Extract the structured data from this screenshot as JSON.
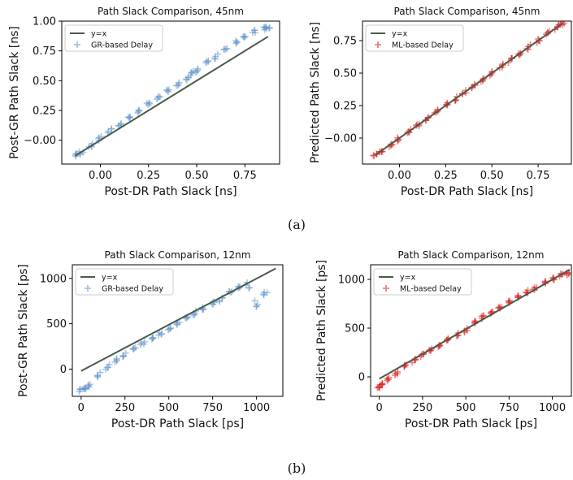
{
  "captions": [
    "(a)",
    "(b)"
  ],
  "chart_data": [
    {
      "type": "scatter",
      "title": "Path Slack Comparison, 45nm",
      "xlabel": "Post-DR Path Slack [ns]",
      "ylabel": "Post-GR Path Slack [ns]",
      "xlim": [
        -0.2,
        0.93
      ],
      "ylim": [
        -0.2,
        1.0
      ],
      "xticks": [
        0.0,
        0.25,
        0.5,
        0.75
      ],
      "xtick_labels": [
        "0.00",
        "0.25",
        "0.50",
        "0.75"
      ],
      "yticks": [
        0.0,
        0.25,
        0.5,
        0.75,
        1.0
      ],
      "ytick_labels": [
        "−0.00",
        "0.25",
        "0.50",
        "0.75",
        "1.00"
      ],
      "legend": "top-left",
      "series": [
        {
          "name": "y=x",
          "kind": "line",
          "color": "#4a5a4a",
          "x": [
            -0.13,
            0.87
          ],
          "y": [
            -0.13,
            0.87
          ]
        },
        {
          "name": "GR-based Delay",
          "kind": "scatter",
          "marker": "+",
          "color": "#5b8fc7",
          "alpha": 0.5,
          "x": [
            -0.13,
            -0.1,
            -0.05,
            0.0,
            0.05,
            0.1,
            0.15,
            0.2,
            0.25,
            0.3,
            0.35,
            0.4,
            0.45,
            0.48,
            0.5,
            0.55,
            0.6,
            0.65,
            0.7,
            0.75,
            0.8,
            0.85,
            0.87
          ],
          "y": [
            -0.13,
            -0.1,
            -0.05,
            0.02,
            0.08,
            0.13,
            0.19,
            0.25,
            0.31,
            0.36,
            0.42,
            0.47,
            0.52,
            0.57,
            0.58,
            0.65,
            0.7,
            0.77,
            0.82,
            0.87,
            0.91,
            0.94,
            0.95
          ]
        }
      ]
    },
    {
      "type": "scatter",
      "title": "Path Slack Comparison, 45nm",
      "xlabel": "Post-DR Path Slack [ns]",
      "ylabel": "Predicted Path Slack [ns]",
      "xlim": [
        -0.2,
        0.93
      ],
      "ylim": [
        -0.2,
        0.9
      ],
      "xticks": [
        0.0,
        0.25,
        0.5,
        0.75
      ],
      "xtick_labels": [
        "0.00",
        "0.25",
        "0.50",
        "0.75"
      ],
      "yticks": [
        0.0,
        0.25,
        0.5,
        0.75
      ],
      "ytick_labels": [
        "−0.00",
        "0.25",
        "0.50",
        "0.75"
      ],
      "legend": "top-left",
      "series": [
        {
          "name": "y=x",
          "kind": "line",
          "color": "#4a5a4a",
          "x": [
            -0.13,
            0.88
          ],
          "y": [
            -0.13,
            0.88
          ]
        },
        {
          "name": "ML-based Delay",
          "kind": "scatter",
          "marker": "+",
          "color": "#e01010",
          "alpha": 0.5,
          "x": [
            -0.13,
            -0.1,
            -0.05,
            0.0,
            0.05,
            0.1,
            0.15,
            0.2,
            0.25,
            0.3,
            0.35,
            0.4,
            0.45,
            0.5,
            0.55,
            0.6,
            0.65,
            0.7,
            0.75,
            0.8,
            0.85,
            0.88
          ],
          "y": [
            -0.13,
            -0.1,
            -0.05,
            0.0,
            0.05,
            0.1,
            0.15,
            0.2,
            0.25,
            0.3,
            0.35,
            0.4,
            0.45,
            0.5,
            0.55,
            0.6,
            0.65,
            0.7,
            0.75,
            0.8,
            0.85,
            0.88
          ]
        }
      ]
    },
    {
      "type": "scatter",
      "title": "Path Slack Comparison, 12nm",
      "xlabel": "Post-DR Path Slack [ps]",
      "ylabel": "Post-GR Path Slack [ps]",
      "xlim": [
        -50,
        1150
      ],
      "ylim": [
        -300,
        1150
      ],
      "xticks": [
        0,
        250,
        500,
        750,
        1000
      ],
      "xtick_labels": [
        "0",
        "250",
        "500",
        "750",
        "1000"
      ],
      "yticks": [
        0,
        500,
        1000
      ],
      "ytick_labels": [
        "0",
        "500",
        "1000"
      ],
      "legend": "top-left",
      "series": [
        {
          "name": "y=x",
          "kind": "line",
          "color": "#4a5a4a",
          "x": [
            0,
            1110
          ],
          "y": [
            -20,
            1110
          ]
        },
        {
          "name": "GR-based Delay",
          "kind": "scatter",
          "marker": "+",
          "color": "#5b8fc7",
          "alpha": 0.5,
          "x": [
            0,
            20,
            50,
            100,
            150,
            200,
            250,
            300,
            350,
            400,
            450,
            500,
            550,
            600,
            650,
            700,
            750,
            800,
            850,
            900,
            950,
            1000,
            1050
          ],
          "y": [
            -230,
            -210,
            -180,
            -70,
            30,
            100,
            170,
            240,
            280,
            330,
            390,
            430,
            510,
            560,
            620,
            680,
            720,
            770,
            850,
            900,
            940,
            700,
            850
          ]
        }
      ]
    },
    {
      "type": "scatter",
      "title": "Path Slack Comparison, 12nm",
      "xlabel": "Post-DR Path Slack [ps]",
      "ylabel": "Predicted Path Slack [ps]",
      "xlim": [
        -50,
        1110
      ],
      "ylim": [
        -200,
        1150
      ],
      "xticks": [
        0,
        250,
        500,
        750,
        1000
      ],
      "xtick_labels": [
        "0",
        "250",
        "500",
        "750",
        "1000"
      ],
      "yticks": [
        0,
        500,
        1000
      ],
      "ytick_labels": [
        "0",
        "500",
        "1000"
      ],
      "legend": "top-left",
      "series": [
        {
          "name": "y=x",
          "kind": "line",
          "color": "#4a5a4a",
          "x": [
            0,
            1100
          ],
          "y": [
            -20,
            1100
          ]
        },
        {
          "name": "ML-based Delay",
          "kind": "scatter",
          "marker": "+",
          "color": "#e01010",
          "alpha": 0.5,
          "x": [
            0,
            20,
            50,
            100,
            150,
            200,
            250,
            300,
            350,
            400,
            450,
            500,
            550,
            600,
            650,
            700,
            750,
            800,
            850,
            900,
            950,
            1000,
            1050,
            1090
          ],
          "y": [
            -110,
            -60,
            -30,
            40,
            110,
            170,
            220,
            280,
            330,
            390,
            430,
            480,
            560,
            620,
            670,
            720,
            770,
            820,
            870,
            910,
            960,
            1000,
            1050,
            1060
          ]
        }
      ]
    }
  ]
}
